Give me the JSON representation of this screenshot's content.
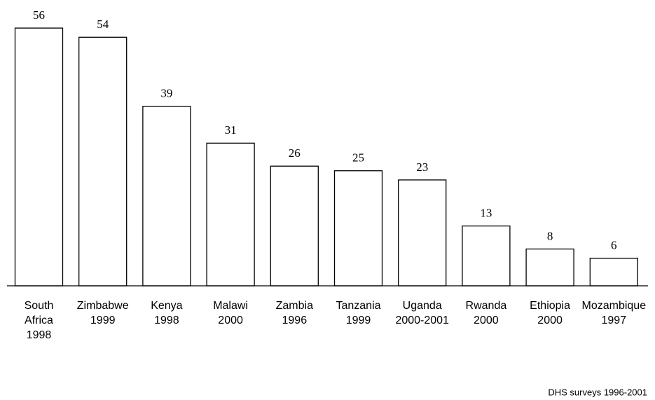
{
  "chart_data": {
    "type": "bar",
    "categories": [
      [
        "South",
        "Africa",
        "1998"
      ],
      [
        "Zimbabwe",
        "1999"
      ],
      [
        "Kenya",
        "1998"
      ],
      [
        "Malawi",
        "2000"
      ],
      [
        "Zambia",
        "1996"
      ],
      [
        "Tanzania",
        "1999"
      ],
      [
        "Uganda",
        "2000-2001"
      ],
      [
        "Rwanda",
        "2000"
      ],
      [
        "Ethiopia",
        "2000"
      ],
      [
        "Mozambique",
        "1997"
      ]
    ],
    "values": [
      56,
      54,
      39,
      31,
      26,
      25,
      23,
      13,
      8,
      6
    ],
    "color": "#ffffff",
    "edgecolor": "#000000",
    "source": "DHS surveys 1996-2001"
  }
}
